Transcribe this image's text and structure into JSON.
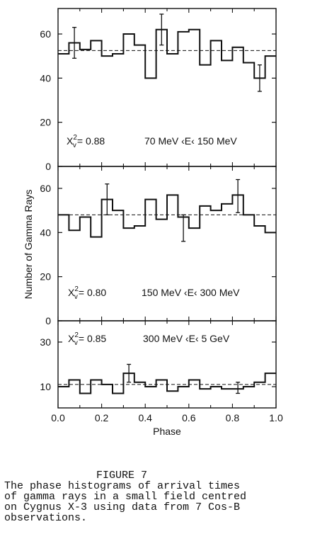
{
  "chart_data": [
    {
      "type": "step",
      "panel": "top",
      "annotation_chi": "= 0.88",
      "annotation_energy": "70 MeV ‹E‹ 150 MeV",
      "bins": 20,
      "x_range": [
        0,
        1
      ],
      "ylim": [
        0,
        70
      ],
      "yticks": [
        0,
        20,
        40,
        60
      ],
      "values": [
        51,
        56,
        53,
        57,
        50,
        51,
        60,
        55,
        40,
        62,
        51,
        61,
        62,
        46,
        57,
        48,
        54,
        47,
        40,
        50
      ],
      "mean": 52.5,
      "error_bars": [
        {
          "phase": 0.075,
          "low": 49,
          "high": 63
        },
        {
          "phase": 0.475,
          "low": 55,
          "high": 69
        },
        {
          "phase": 0.925,
          "low": 34,
          "high": 46
        }
      ]
    },
    {
      "type": "step",
      "panel": "middle",
      "annotation_chi": "= 0.80",
      "annotation_energy": "150 MeV ‹E‹ 300 MeV",
      "bins": 20,
      "x_range": [
        0,
        1
      ],
      "ylim": [
        0,
        70
      ],
      "yticks": [
        0,
        20,
        40,
        60
      ],
      "values": [
        48,
        41,
        47,
        38,
        55,
        50,
        42,
        43,
        55,
        46,
        57,
        47,
        42,
        52,
        50,
        53,
        57,
        48,
        43,
        40
      ],
      "mean": 48,
      "error_bars": [
        {
          "phase": 0.225,
          "low": 48,
          "high": 62
        },
        {
          "phase": 0.575,
          "low": 36,
          "high": 48
        },
        {
          "phase": 0.825,
          "low": 49,
          "high": 64
        }
      ]
    },
    {
      "type": "step",
      "panel": "bottom",
      "annotation_chi": "= 0.85",
      "annotation_energy": "300 MeV ‹E‹ 5 GeV",
      "bins": 20,
      "x_range": [
        0,
        1
      ],
      "ylim": [
        0,
        38
      ],
      "yticks": [
        10,
        30
      ],
      "values": [
        10,
        13,
        7,
        13,
        11,
        7,
        16,
        12,
        10,
        13,
        8,
        10,
        13,
        9,
        10,
        9,
        9,
        10,
        12,
        16
      ],
      "mean": 11,
      "error_bars": [
        {
          "phase": 0.325,
          "low": 12,
          "high": 20
        },
        {
          "phase": 0.825,
          "low": 7,
          "high": 12
        }
      ]
    }
  ],
  "axes": {
    "ylabel": "Number of Gamma Rays",
    "xlabel": "Phase",
    "xticks": [
      "0.0",
      "0.2",
      "0.4",
      "0.6",
      "0.8",
      "1.0"
    ],
    "chi_symbol": "X",
    "chi_sup": "2",
    "chi_sub": "v"
  },
  "caption": {
    "title": "FIGURE 7",
    "lines": [
      "The phase histograms of arrival times",
      "of gamma rays in a small field centred",
      "on Cygnus X-3 using data from 7 Cos-B",
      "observations."
    ]
  }
}
